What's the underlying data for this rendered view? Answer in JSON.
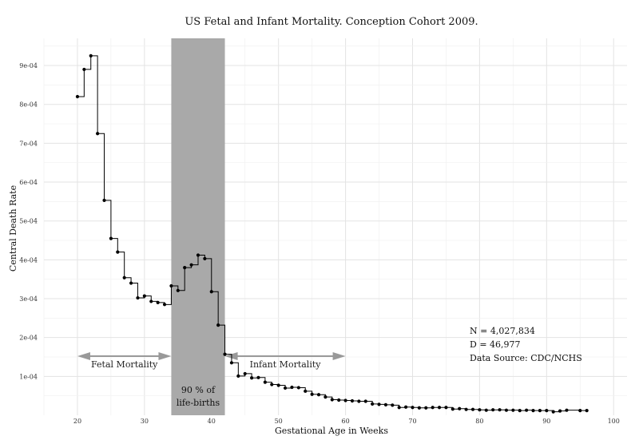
{
  "chart_data": {
    "type": "line",
    "title": "US Fetal and Infant Mortality. Conception Cohort 2009.",
    "xlabel": "Gestational Age in Weeks",
    "ylabel": "Central Death Rate",
    "xlim": [
      15,
      102
    ],
    "ylim": [
      0,
      0.00097
    ],
    "grid": true,
    "x_ticks": [
      20,
      30,
      40,
      50,
      60,
      70,
      80,
      90,
      100
    ],
    "x_tick_labels": [
      "20",
      "30",
      "40",
      "50",
      "60",
      "70",
      "80",
      "90",
      "100"
    ],
    "y_ticks": [
      0.0001,
      0.0002,
      0.0003,
      0.0004,
      0.0005,
      0.0006,
      0.0007,
      0.0008,
      0.0009
    ],
    "y_tick_labels": [
      "1e-04",
      "2e-04",
      "3e-04",
      "4e-04",
      "5e-04",
      "6e-04",
      "7e-04",
      "8e-04",
      "9e-04"
    ],
    "series": [
      {
        "x": [
          20,
          21,
          22,
          23,
          24,
          25,
          26,
          27,
          28,
          29,
          30,
          31,
          32,
          33,
          34,
          35,
          36,
          37,
          38,
          39,
          40,
          41,
          42,
          43,
          44,
          45,
          46,
          47,
          48,
          49,
          50,
          51,
          52,
          53,
          54,
          55,
          56,
          57,
          58,
          59,
          60,
          61,
          62,
          63,
          64,
          65,
          66,
          67,
          68,
          69,
          70,
          71,
          72,
          73,
          74,
          75,
          76,
          77,
          78,
          79,
          80,
          81,
          82,
          83,
          84,
          85,
          86,
          87,
          88,
          89,
          90,
          91,
          92,
          93,
          94,
          95,
          96
        ],
        "values": [
          0.00082,
          0.00089,
          0.000925,
          0.000725,
          0.000553,
          0.000455,
          0.00042,
          0.000354,
          0.00034,
          0.000302,
          0.000307,
          0.000293,
          0.00029,
          0.000285,
          0.000333,
          0.000321,
          0.00038,
          0.000387,
          0.000412,
          0.000403,
          0.000318,
          0.000232,
          0.000157,
          0.000135,
          0.000101,
          0.000107,
          9.6e-05,
          9.7e-05,
          8.5e-05,
          7.9e-05,
          7.7e-05,
          7e-05,
          7.2e-05,
          7.1e-05,
          6.2e-05,
          5.4e-05,
          5.3e-05,
          4.7e-05,
          4e-05,
          3.9e-05,
          3.8e-05,
          3.7e-05,
          3.6e-05,
          3.6e-05,
          2.9e-05,
          2.8e-05,
          2.7e-05,
          2.6e-05,
          2e-05,
          2.1e-05,
          2e-05,
          1.9e-05,
          1.9e-05,
          2e-05,
          2e-05,
          2e-05,
          1.6e-05,
          1.7e-05,
          1.5e-05,
          1.5e-05,
          1.4e-05,
          1.3e-05,
          1.4e-05,
          1.4e-05,
          1.3e-05,
          1.3e-05,
          1.2e-05,
          1.3e-05,
          1.2e-05,
          1.2e-05,
          1.2e-05,
          9e-06,
          1.1e-05,
          1.3e-05,
          null,
          1.2e-05,
          1.2e-05
        ]
      }
    ],
    "shaded_region": {
      "x_from": 34,
      "x_to": 42,
      "color": "#a9a9a9",
      "label_lines": [
        "90 % of",
        "life-births"
      ]
    },
    "arrows": {
      "y": 0.000152,
      "color": "#999999",
      "fetal": {
        "x_from": 20,
        "x_to": 34,
        "label": "Fetal Mortality"
      },
      "infant": {
        "x_from": 42,
        "x_to": 60,
        "label": "Infant Mortality"
      }
    },
    "annotations": [
      "N = 4,027,834",
      "D = 46,977",
      "Data Source: CDC/NCHS"
    ]
  }
}
